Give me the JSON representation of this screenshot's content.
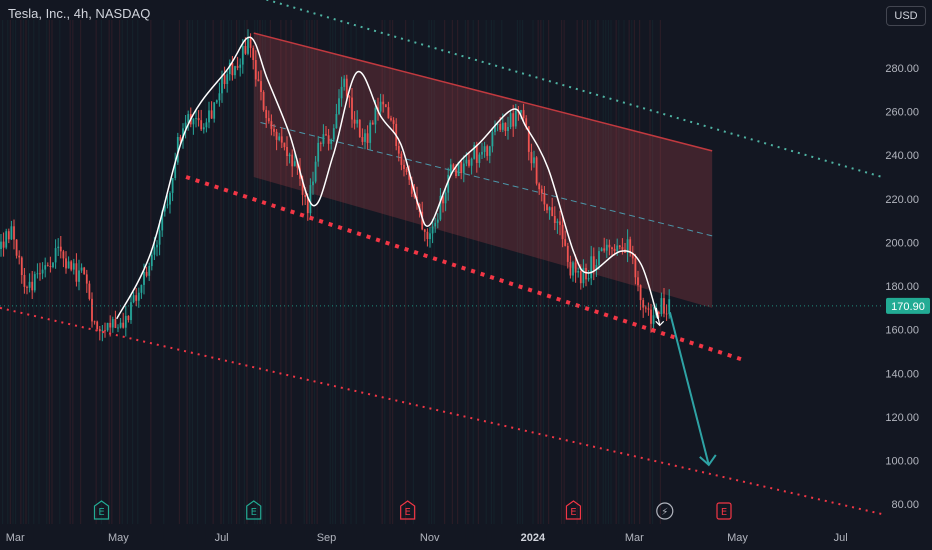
{
  "header": {
    "title": "Tesla, Inc., 4h, NASDAQ",
    "currency_button": "USD"
  },
  "price_label": {
    "value": "170.90",
    "color": "#22ab94"
  },
  "colors": {
    "background": "#131722",
    "up_candle": "#26a69a",
    "down_candle": "#ef5350",
    "channel_fill": "#b2444a",
    "channel_line": "#c0393f",
    "red_dotted": "#f23645",
    "teal_dotted": "#4fb3a3",
    "projection_arrow": "#2ea3a5",
    "wave_line": "#ffffff"
  },
  "chart_data": {
    "type": "candlestick",
    "title": "Tesla, Inc., 4h, NASDAQ",
    "ylim": [
      70,
      302
    ],
    "y_ticks": [
      80,
      100,
      120,
      140,
      160,
      180,
      200,
      220,
      240,
      260,
      280
    ],
    "y_tick_labels": [
      "80.00",
      "100.00",
      "120.00",
      "140.00",
      "160.00",
      "180.00",
      "200.00",
      "220.00",
      "240.00",
      "260.00",
      "280.00"
    ],
    "x_range": [
      "2023-02-20",
      "2024-08-08"
    ],
    "x_ticks": [
      {
        "date": "2023-03-01",
        "label": "Mar"
      },
      {
        "date": "2023-05-01",
        "label": "May"
      },
      {
        "date": "2023-07-01",
        "label": "Jul"
      },
      {
        "date": "2023-09-01",
        "label": "Sep"
      },
      {
        "date": "2023-11-01",
        "label": "Nov"
      },
      {
        "date": "2024-01-01",
        "label": "2024"
      },
      {
        "date": "2024-03-01",
        "label": "Mar"
      },
      {
        "date": "2024-05-01",
        "label": "May"
      },
      {
        "date": "2024-07-01",
        "label": "Jul"
      }
    ],
    "price_path": [
      [
        "2023-02-20",
        197
      ],
      [
        "2023-02-27",
        208
      ],
      [
        "2023-03-06",
        180
      ],
      [
        "2023-03-13",
        183
      ],
      [
        "2023-03-20",
        191
      ],
      [
        "2023-03-27",
        194
      ],
      [
        "2023-04-03",
        186
      ],
      [
        "2023-04-10",
        186
      ],
      [
        "2023-04-17",
        162
      ],
      [
        "2023-04-24",
        164
      ],
      [
        "2023-05-01",
        163
      ],
      [
        "2023-05-08",
        168
      ],
      [
        "2023-05-15",
        181
      ],
      [
        "2023-05-22",
        194
      ],
      [
        "2023-05-29",
        217
      ],
      [
        "2023-06-05",
        244
      ],
      [
        "2023-06-12",
        258
      ],
      [
        "2023-06-19",
        256
      ],
      [
        "2023-06-26",
        262
      ],
      [
        "2023-07-03",
        277
      ],
      [
        "2023-07-10",
        281
      ],
      [
        "2023-07-17",
        293
      ],
      [
        "2023-07-24",
        266
      ],
      [
        "2023-07-31",
        253
      ],
      [
        "2023-08-07",
        242
      ],
      [
        "2023-08-14",
        232
      ],
      [
        "2023-08-21",
        216
      ],
      [
        "2023-08-28",
        245
      ],
      [
        "2023-09-04",
        248
      ],
      [
        "2023-09-11",
        274
      ],
      [
        "2023-09-18",
        253
      ],
      [
        "2023-09-25",
        247
      ],
      [
        "2023-10-02",
        262
      ],
      [
        "2023-10-09",
        256
      ],
      [
        "2023-10-16",
        238
      ],
      [
        "2023-10-23",
        220
      ],
      [
        "2023-10-30",
        205
      ],
      [
        "2023-11-06",
        215
      ],
      [
        "2023-11-13",
        232
      ],
      [
        "2023-11-20",
        236
      ],
      [
        "2023-11-27",
        241
      ],
      [
        "2023-12-04",
        240
      ],
      [
        "2023-12-11",
        252
      ],
      [
        "2023-12-18",
        255
      ],
      [
        "2023-12-25",
        259
      ],
      [
        "2024-01-01",
        237
      ],
      [
        "2024-01-08",
        219
      ],
      [
        "2024-01-15",
        212
      ],
      [
        "2024-01-22",
        190
      ],
      [
        "2024-01-29",
        182
      ],
      [
        "2024-02-05",
        190
      ],
      [
        "2024-02-12",
        199
      ],
      [
        "2024-02-19",
        194
      ],
      [
        "2024-02-26",
        201
      ],
      [
        "2024-03-04",
        175
      ],
      [
        "2024-03-11",
        164
      ],
      [
        "2024-03-18",
        172
      ],
      [
        "2024-03-22",
        171
      ]
    ],
    "last_price": 170.9,
    "wave_path": [
      [
        "2023-04-30",
        165
      ],
      [
        "2023-05-20",
        195
      ],
      [
        "2023-06-10",
        252
      ],
      [
        "2023-07-05",
        280
      ],
      [
        "2023-07-18",
        294
      ],
      [
        "2023-07-28",
        275
      ],
      [
        "2023-08-10",
        250
      ],
      [
        "2023-08-24",
        217
      ],
      [
        "2023-09-05",
        240
      ],
      [
        "2023-09-19",
        278
      ],
      [
        "2023-10-03",
        258
      ],
      [
        "2023-10-15",
        245
      ],
      [
        "2023-10-25",
        218
      ],
      [
        "2023-11-01",
        208
      ],
      [
        "2023-11-15",
        233
      ],
      [
        "2023-12-01",
        246
      ],
      [
        "2023-12-20",
        261
      ],
      [
        "2023-12-28",
        253
      ],
      [
        "2024-01-10",
        234
      ],
      [
        "2024-01-25",
        196
      ],
      [
        "2024-02-03",
        186
      ],
      [
        "2024-02-22",
        196
      ],
      [
        "2024-03-05",
        190
      ],
      [
        "2024-03-15",
        165
      ]
    ],
    "small_arrow": [
      [
        "2024-03-14",
        170
      ],
      [
        "2024-03-16",
        162
      ]
    ],
    "channel_top": [
      [
        "2023-07-20",
        296
      ],
      [
        "2024-04-16",
        242
      ]
    ],
    "channel_bottom": [
      [
        "2023-07-20",
        230
      ],
      [
        "2024-04-16",
        170
      ]
    ],
    "channel_mid": [
      [
        "2023-07-24",
        255
      ],
      [
        "2024-04-16",
        203
      ]
    ],
    "support_thick_dotted": [
      [
        "2023-06-10",
        230
      ],
      [
        "2024-05-05",
        146
      ]
    ],
    "lower_red_dotted": [
      [
        "2023-02-20",
        170
      ],
      [
        "2024-08-08",
        73
      ]
    ],
    "upper_teal_dotted": [
      [
        "2023-05-05",
        330
      ],
      [
        "2024-08-08",
        227
      ]
    ],
    "projection_arrow": [
      [
        "2024-03-22",
        168
      ],
      [
        "2024-04-14",
        98
      ]
    ],
    "earnings_markers": [
      {
        "date": "2023-04-21",
        "label": "E",
        "kind": "beat"
      },
      {
        "date": "2023-07-20",
        "label": "E",
        "kind": "beat"
      },
      {
        "date": "2023-10-19",
        "label": "E",
        "kind": "miss"
      },
      {
        "date": "2024-01-25",
        "label": "E",
        "kind": "miss"
      },
      {
        "date": "2024-03-19",
        "label": "⚡",
        "kind": "event"
      },
      {
        "date": "2024-04-23",
        "label": "E",
        "kind": "upcoming"
      }
    ]
  }
}
